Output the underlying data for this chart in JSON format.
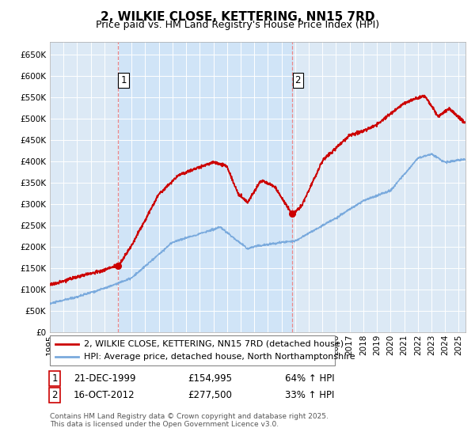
{
  "title": "2, WILKIE CLOSE, KETTERING, NN15 7RD",
  "subtitle": "Price paid vs. HM Land Registry's House Price Index (HPI)",
  "xlim_start": 1995.0,
  "xlim_end": 2025.5,
  "ylim_min": 0,
  "ylim_max": 680000,
  "yticks": [
    0,
    50000,
    100000,
    150000,
    200000,
    250000,
    300000,
    350000,
    400000,
    450000,
    500000,
    550000,
    600000,
    650000
  ],
  "ytick_labels": [
    "£0",
    "£50K",
    "£100K",
    "£150K",
    "£200K",
    "£250K",
    "£300K",
    "£350K",
    "£400K",
    "£450K",
    "£500K",
    "£550K",
    "£600K",
    "£650K"
  ],
  "background_color": "#ffffff",
  "plot_bg_color": "#dce9f5",
  "grid_color": "#cccccc",
  "purchase1_x": 2000.0,
  "purchase1_y": 154995,
  "purchase1_label": "1",
  "purchase1_date": "21-DEC-1999",
  "purchase1_price": "£154,995",
  "purchase1_hpi": "64% ↑ HPI",
  "purchase2_x": 2012.8,
  "purchase2_y": 277500,
  "purchase2_label": "2",
  "purchase2_date": "16-OCT-2012",
  "purchase2_price": "£277,500",
  "purchase2_hpi": "33% ↑ HPI",
  "red_line_color": "#cc0000",
  "blue_line_color": "#7aaadd",
  "vline_color": "#ee8888",
  "legend_line1": "2, WILKIE CLOSE, KETTERING, NN15 7RD (detached house)",
  "legend_line2": "HPI: Average price, detached house, North Northamptonshire",
  "footer_text": "Contains HM Land Registry data © Crown copyright and database right 2025.\nThis data is licensed under the Open Government Licence v3.0.",
  "title_fontsize": 11,
  "subtitle_fontsize": 9,
  "tick_fontsize": 7.5,
  "legend_fontsize": 8,
  "annotation_fontsize": 8.5,
  "footer_fontsize": 6.5
}
